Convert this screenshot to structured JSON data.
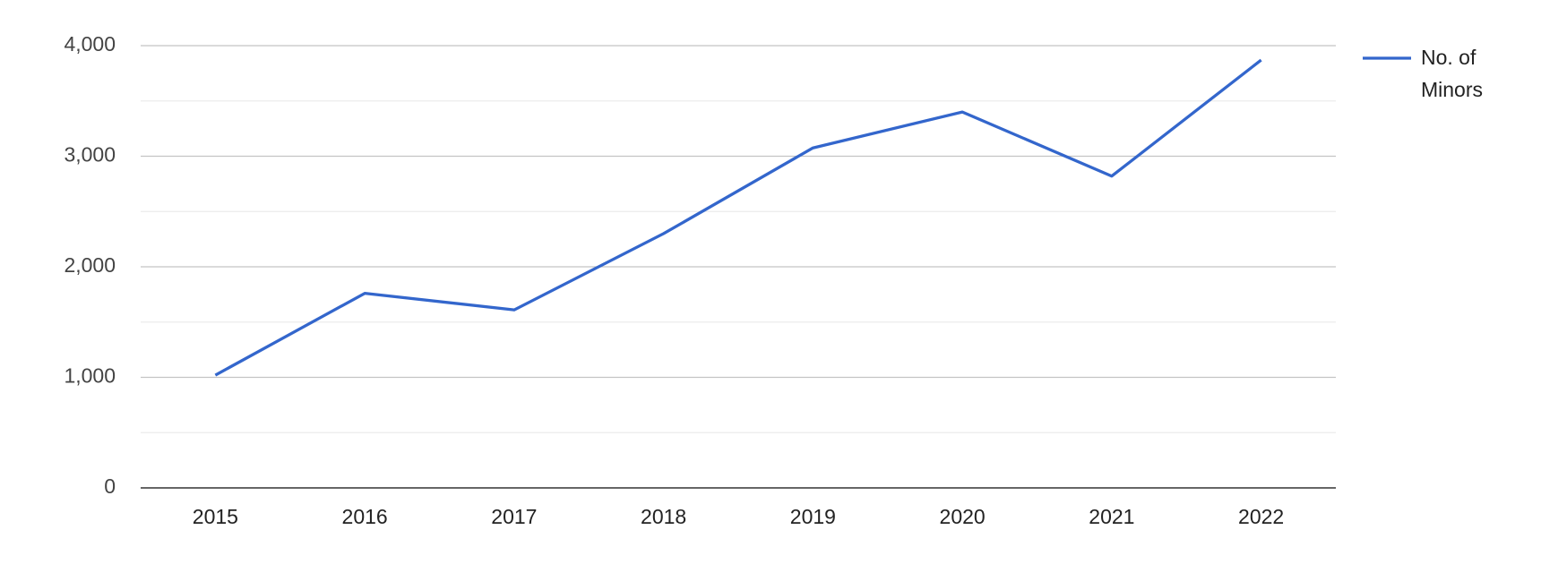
{
  "chart_data": {
    "type": "line",
    "categories": [
      "2015",
      "2016",
      "2017",
      "2018",
      "2019",
      "2020",
      "2021",
      "2022"
    ],
    "series": [
      {
        "name": "No. of Minors",
        "color": "#3366cc",
        "values": [
          1020,
          1760,
          1610,
          2300,
          3075,
          3400,
          2820,
          3870
        ]
      }
    ],
    "ylim": [
      0,
      4000
    ],
    "yticks": [
      0,
      {
        "value": 1000,
        "label": "1,000"
      },
      {
        "value": 2000,
        "label": "2,000"
      },
      {
        "value": 3000,
        "label": "3,000"
      },
      {
        "value": 4000,
        "label": "4,000"
      }
    ],
    "minor_yticks": [
      500,
      1500,
      2500,
      3500
    ],
    "grid": true,
    "legend": "right"
  }
}
